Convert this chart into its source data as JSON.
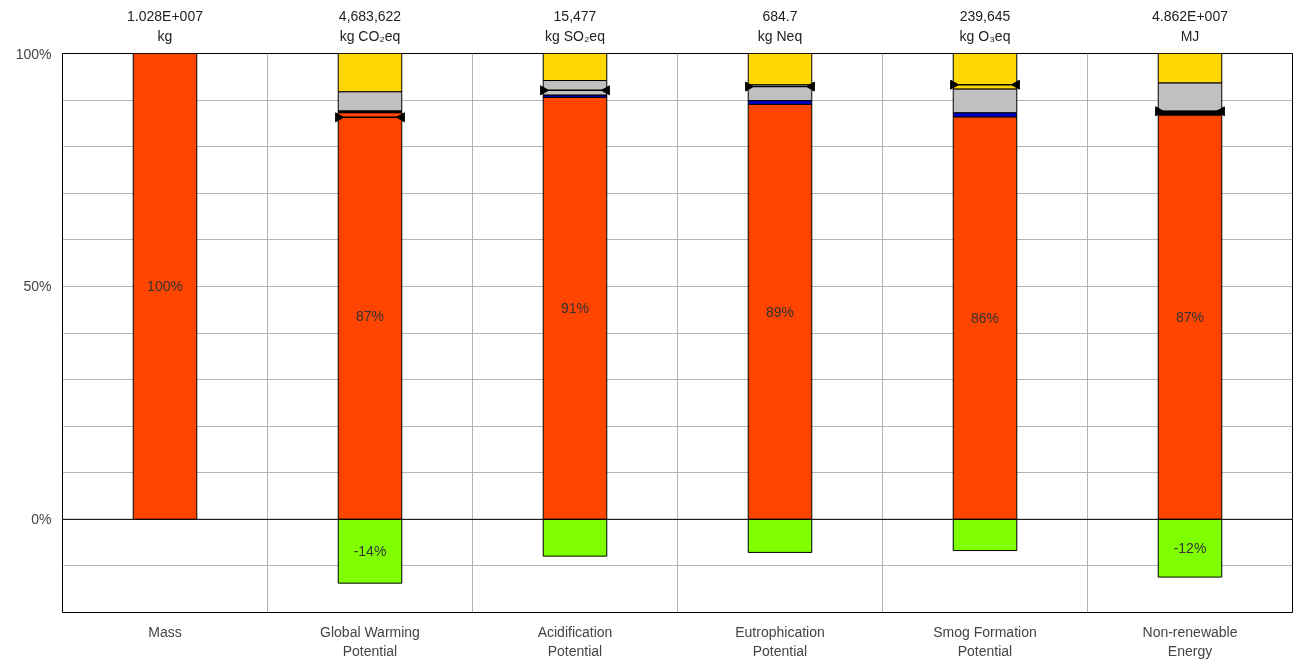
{
  "chart_data": {
    "type": "bar",
    "stacked": true,
    "categories": [
      "Mass",
      "Global Warming Potential",
      "Acidification Potential",
      "Eutrophication Potential",
      "Smog Formation Potential",
      "Non-renewable Energy"
    ],
    "series": [
      {
        "color": "#ff4500",
        "values": [
          100,
          87.3,
          90.6,
          89.1,
          86.4,
          86.8
        ],
        "value_labels": [
          "100%",
          "87%",
          "91%",
          "89%",
          "86%",
          "87%"
        ]
      },
      {
        "colors": [
          "#000000",
          "#000000",
          "#0000cc",
          "#0000cc",
          "#0000cc",
          "#000000"
        ],
        "values": [
          0,
          0.4,
          0.5,
          0.8,
          0.9,
          0.8
        ]
      },
      {
        "color": "#c0c0c0",
        "values": [
          0,
          4.1,
          3.1,
          3.4,
          5.1,
          6.1
        ]
      },
      {
        "color": "#ffd700",
        "values": [
          0,
          8.2,
          5.8,
          6.7,
          7.6,
          6.3
        ]
      },
      {
        "color": "#80ff00",
        "values": [
          0,
          -13.7,
          -7.9,
          -7.1,
          -6.7,
          -12.4
        ],
        "value_labels": [
          null,
          "-14%",
          null,
          null,
          null,
          "-12%"
        ]
      },
      {
        "type": "scatter",
        "marker": "triangle",
        "color": "#000000",
        "values": [
          null,
          86.3,
          92.1,
          92.9,
          93.3,
          87.6
        ]
      }
    ],
    "ylim": [
      -20,
      100
    ],
    "yticks": [
      {
        "value": -20,
        "label": null
      },
      {
        "value": -10,
        "label": null
      },
      {
        "value": 0,
        "label": "0%"
      },
      {
        "value": 10,
        "label": null
      },
      {
        "value": 20,
        "label": null
      },
      {
        "value": 30,
        "label": null
      },
      {
        "value": 40,
        "label": null
      },
      {
        "value": 50,
        "label": "50%"
      },
      {
        "value": 60,
        "label": null
      },
      {
        "value": 70,
        "label": null
      },
      {
        "value": 80,
        "label": null
      },
      {
        "value": 90,
        "label": null
      },
      {
        "value": 100,
        "label": "100%"
      }
    ],
    "grid": true,
    "annotations": [
      "1.028E+007\nkg",
      "4,683,622\nkg CO₂eq",
      "15,477\nkg SO₂eq",
      "684.7\nkg Neq",
      "239,645\nkg O₃eq",
      "4.862E+007\nMJ"
    ]
  }
}
